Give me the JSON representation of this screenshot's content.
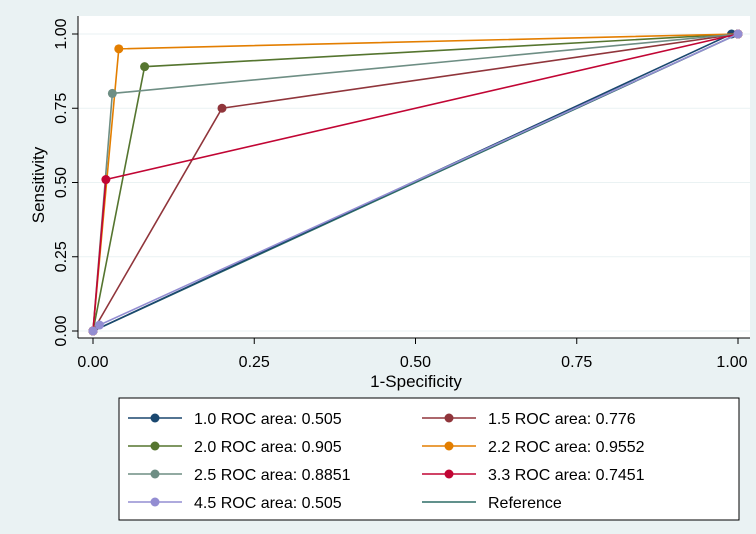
{
  "chart_data": {
    "type": "line",
    "xlabel": "1-Specificity",
    "ylabel": "Sensitivity",
    "xlim": [
      0,
      1
    ],
    "ylim": [
      0,
      1
    ],
    "xticks": [
      "0.00",
      "0.25",
      "0.50",
      "0.75",
      "1.00"
    ],
    "yticks": [
      "0.00",
      "0.25",
      "0.50",
      "0.75",
      "1.00"
    ],
    "grid": true,
    "legend_position": "bottom",
    "series": [
      {
        "name": "1.0 ROC area: 0.505",
        "color": "#1a476f",
        "points": [
          [
            0,
            0
          ],
          [
            0.99,
            1
          ],
          [
            1,
            1
          ]
        ]
      },
      {
        "name": "1.5 ROC area: 0.776",
        "color": "#90353b",
        "points": [
          [
            0,
            0
          ],
          [
            0.2,
            0.75
          ],
          [
            1,
            1
          ]
        ]
      },
      {
        "name": "2.0 ROC area: 0.905",
        "color": "#55752f",
        "points": [
          [
            0,
            0
          ],
          [
            0.08,
            0.89
          ],
          [
            1,
            1
          ]
        ]
      },
      {
        "name": "2.2 ROC area: 0.9552",
        "color": "#e37e00",
        "points": [
          [
            0,
            0
          ],
          [
            0.04,
            0.95
          ],
          [
            1,
            1
          ]
        ]
      },
      {
        "name": "2.5 ROC area: 0.8851",
        "color": "#6e8e84",
        "points": [
          [
            0,
            0
          ],
          [
            0.03,
            0.8
          ],
          [
            1,
            1
          ]
        ]
      },
      {
        "name": "3.3 ROC area: 0.7451",
        "color": "#c10534",
        "points": [
          [
            0,
            0
          ],
          [
            0.02,
            0.51
          ],
          [
            1,
            1
          ]
        ]
      },
      {
        "name": "4.5 ROC area: 0.505",
        "color": "#938dd2",
        "points": [
          [
            0,
            0
          ],
          [
            0.01,
            0.02
          ],
          [
            1,
            1
          ]
        ]
      }
    ],
    "reference": {
      "name": "Reference",
      "color": "#2d6d66",
      "points": [
        [
          0,
          0
        ],
        [
          1,
          1
        ]
      ]
    }
  }
}
